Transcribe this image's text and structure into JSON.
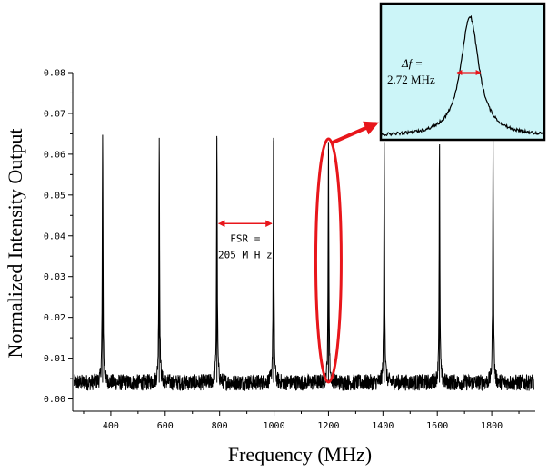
{
  "chart_data": {
    "type": "line",
    "title": "",
    "xlabel": "Frequency (MHz)",
    "ylabel": "Normalized Intensity Output",
    "xlim": [
      260,
      1960
    ],
    "ylim": [
      -0.003,
      0.08
    ],
    "x_ticks": [
      400,
      600,
      800,
      1000,
      1200,
      1400,
      1600,
      1800
    ],
    "x_tick_labels": [
      "400",
      "600",
      "800",
      "1000",
      "1200",
      "1400",
      "1600",
      "1800"
    ],
    "y_ticks": [
      0.0,
      0.01,
      0.02,
      0.03,
      0.04,
      0.05,
      0.06,
      0.07,
      0.08
    ],
    "y_tick_labels": [
      "0.00",
      "0.01",
      "0.02",
      "0.03",
      "0.04",
      "0.05",
      "0.06",
      "0.07",
      "0.08"
    ],
    "grid": false,
    "legend": "none",
    "series": [
      {
        "baseline": 0.004,
        "noise_amplitude": 0.002,
        "peaks": [
          {
            "x": 370,
            "y": 0.064
          },
          {
            "x": 578,
            "y": 0.064
          },
          {
            "x": 790,
            "y": 0.064
          },
          {
            "x": 998,
            "y": 0.064
          },
          {
            "x": 1200,
            "y": 0.063
          },
          {
            "x": 1405,
            "y": 0.063
          },
          {
            "x": 1608,
            "y": 0.062
          },
          {
            "x": 1805,
            "y": 0.064
          }
        ]
      }
    ],
    "annotations": {
      "fsr_label_line1": "FSR =",
      "fsr_label_line2": "205 M H z",
      "fsr_range": [
        790,
        998
      ],
      "fsr_y": 0.043,
      "highlight_peak_x": 1200
    },
    "inset": {
      "delta_f_symbol": "Δf =",
      "delta_f_value": "2.72 MHz",
      "background_color": "#ccf5f8"
    },
    "colors": {
      "trace": "#000000",
      "annotation": "#e8161b"
    }
  }
}
